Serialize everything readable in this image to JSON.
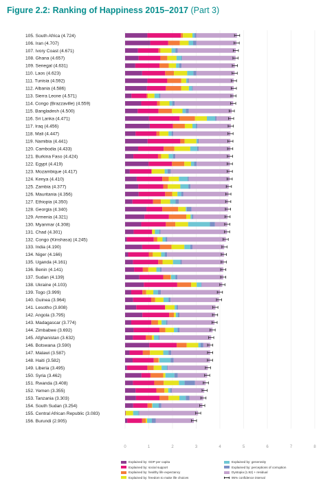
{
  "chart_data": {
    "type": "bar",
    "stacked": true,
    "orientation": "horizontal",
    "title": "Figure 2.2: Ranking of Happiness 2015–2017",
    "subtitle": "(Part 3)",
    "xlim": [
      0,
      8
    ],
    "ticks": [
      "0",
      "1",
      "2",
      "3",
      "4",
      "5",
      "6",
      "7",
      "8"
    ],
    "grid": true,
    "legend_position": "bottom",
    "series": [
      {
        "key": "gdp",
        "name": "Explained by: GDP per capita",
        "color": "#8e3a8f"
      },
      {
        "key": "social",
        "name": "Explained by: social support",
        "color": "#e6157a"
      },
      {
        "key": "health",
        "name": "Explained by: healthy life expectancy",
        "color": "#f47b3a"
      },
      {
        "key": "freedom",
        "name": "Explained by: freedom to make life choices",
        "color": "#e6e31f"
      },
      {
        "key": "generosity",
        "name": "Explained by: generosity",
        "color": "#6ec6d4"
      },
      {
        "key": "corruption",
        "name": "Explained by: perceptions of corruption",
        "color": "#7c8fc4"
      },
      {
        "key": "dystopia",
        "name": "Dystopia (1.92) + residual",
        "color": "#c3a2cd"
      }
    ],
    "ci_label": "95% confidence interval",
    "rows": [
      {
        "label": "105. South Africa (4.724)",
        "score": 4.724,
        "values": [
          0.94,
          1.41,
          0.09,
          0.4,
          0.09,
          0.07,
          1.72
        ]
      },
      {
        "label": "106. Iran (4.707)",
        "score": 4.707,
        "values": [
          1.06,
          0.76,
          0.49,
          0.37,
          0.19,
          0.14,
          1.69
        ]
      },
      {
        "label": "107. Ivory Coast (4.671)",
        "score": 4.671,
        "values": [
          0.54,
          0.87,
          0.08,
          0.47,
          0.16,
          0.1,
          2.45
        ]
      },
      {
        "label": "108. Ghana (4.657)",
        "score": 4.657,
        "values": [
          0.57,
          0.92,
          0.29,
          0.39,
          0.21,
          0.03,
          2.25
        ]
      },
      {
        "label": "109. Senegal (4.631)",
        "score": 4.631,
        "values": [
          0.43,
          1.02,
          0.39,
          0.31,
          0.13,
          0.1,
          2.25
        ]
      },
      {
        "label": "110. Laos (4.623)",
        "score": 4.623,
        "values": [
          0.72,
          0.97,
          0.37,
          0.56,
          0.26,
          0.13,
          1.61
        ]
      },
      {
        "label": "111. Tunisia (4.592)",
        "score": 4.592,
        "values": [
          0.94,
          0.84,
          0.59,
          0.21,
          0.05,
          0.06,
          1.89
        ]
      },
      {
        "label": "112. Albania (4.586)",
        "score": 4.586,
        "values": [
          0.92,
          0.8,
          0.65,
          0.32,
          0.13,
          0.04,
          1.72
        ]
      },
      {
        "label": "113. Sierra Leone (4.571)",
        "score": 4.571,
        "values": [
          0.27,
          0.64,
          0.05,
          0.28,
          0.19,
          0.06,
          3.08
        ]
      },
      {
        "label": "114. Congo (Brazzaville) (4.559)",
        "score": 4.559,
        "values": [
          0.68,
          0.67,
          0.12,
          0.4,
          0.12,
          0.1,
          2.47
        ]
      },
      {
        "label": "115. Bangladesh (4.500)",
        "score": 4.5,
        "values": [
          0.53,
          0.88,
          0.57,
          0.44,
          0.14,
          0.13,
          1.81
        ]
      },
      {
        "label": "116. Sri Lanka (4.471)",
        "score": 4.471,
        "values": [
          1.01,
          1.29,
          0.65,
          0.5,
          0.35,
          0.06,
          0.61
        ]
      },
      {
        "label": "117. Iraq (4.456)",
        "score": 4.456,
        "values": [
          1.04,
          0.98,
          0.5,
          0.32,
          0.15,
          0.06,
          1.41
        ]
      },
      {
        "label": "118. Mali (4.447)",
        "score": 4.447,
        "values": [
          0.44,
          0.88,
          0.13,
          0.38,
          0.13,
          0.07,
          2.41
        ]
      },
      {
        "label": "119. Namibia (4.441)",
        "score": 4.441,
        "values": [
          0.95,
          1.38,
          0.18,
          0.5,
          0.05,
          0.05,
          1.33
        ]
      },
      {
        "label": "120. Cambodia (4.433)",
        "score": 4.433,
        "values": [
          0.55,
          1.08,
          0.45,
          0.67,
          0.29,
          0.06,
          1.34
        ]
      },
      {
        "label": "121. Burkina Faso (4.424)",
        "score": 4.424,
        "values": [
          0.35,
          1.04,
          0.13,
          0.32,
          0.18,
          0.1,
          2.3
        ]
      },
      {
        "label": "122. Egypt (4.419)",
        "score": 4.419,
        "values": [
          0.99,
          0.99,
          0.52,
          0.28,
          0.13,
          0.11,
          1.4
        ]
      },
      {
        "label": "123. Mozambique (4.417)",
        "score": 4.417,
        "values": [
          0.2,
          0.91,
          0.02,
          0.54,
          0.12,
          0.14,
          2.48
        ]
      },
      {
        "label": "124. Kenya (4.410)",
        "score": 4.41,
        "values": [
          0.49,
          1.08,
          0.27,
          0.43,
          0.37,
          0.05,
          1.72
        ]
      },
      {
        "label": "125. Zambia (4.377)",
        "score": 4.377,
        "values": [
          0.56,
          1.05,
          0.19,
          0.53,
          0.34,
          0.09,
          1.61
        ]
      },
      {
        "label": "126. Mauritania (4.356)",
        "score": 4.356,
        "values": [
          0.57,
          1.12,
          0.3,
          0.22,
          0.16,
          0.09,
          1.9
        ]
      },
      {
        "label": "127. Ethiopia (4.350)",
        "score": 4.35,
        "values": [
          0.31,
          0.87,
          0.33,
          0.39,
          0.23,
          0.14,
          2.07
        ]
      },
      {
        "label": "128. Georgia (4.340)",
        "score": 4.34,
        "values": [
          0.9,
          0.67,
          0.67,
          0.32,
          0.04,
          0.2,
          1.54
        ]
      },
      {
        "label": "129. Armenia (4.321)",
        "score": 4.321,
        "values": [
          0.82,
          1.03,
          0.73,
          0.18,
          0.06,
          0.06,
          1.44
        ]
      },
      {
        "label": "130. Myanmar (4.308)",
        "score": 4.308,
        "values": [
          0.68,
          1.04,
          0.4,
          0.54,
          0.92,
          0.21,
          0.52
        ]
      },
      {
        "label": "131. Chad (4.301)",
        "score": 4.301,
        "values": [
          0.36,
          0.78,
          0.0,
          0.12,
          0.18,
          0.06,
          2.8
        ]
      },
      {
        "label": "132. Congo (Kinshasa) (4.245)",
        "score": 4.245,
        "values": [
          0.07,
          1.14,
          0.15,
          0.22,
          0.13,
          0.07,
          2.47
        ]
      },
      {
        "label": "133. India (4.190)",
        "score": 4.19,
        "values": [
          0.72,
          0.75,
          0.49,
          0.54,
          0.25,
          0.09,
          1.34
        ]
      },
      {
        "label": "134. Niger (4.166)",
        "score": 4.166,
        "values": [
          0.13,
          0.87,
          0.17,
          0.35,
          0.15,
          0.1,
          2.4
        ]
      },
      {
        "label": "135. Uganda (4.161)",
        "score": 4.161,
        "values": [
          0.33,
          1.07,
          0.18,
          0.44,
          0.31,
          0.06,
          1.77
        ]
      },
      {
        "label": "136. Benin (4.141)",
        "score": 4.141,
        "values": [
          0.38,
          0.37,
          0.23,
          0.34,
          0.16,
          0.06,
          2.6
        ]
      },
      {
        "label": "137. Sudan (4.139)",
        "score": 4.139,
        "values": [
          0.6,
          1.01,
          0.31,
          0.02,
          0.18,
          0.09,
          1.93
        ]
      },
      {
        "label": "138. Ukraine (4.103)",
        "score": 4.103,
        "values": [
          0.79,
          1.41,
          0.59,
          0.23,
          0.19,
          0.02,
          0.87
        ]
      },
      {
        "label": "139. Togo (3.999)",
        "score": 3.999,
        "values": [
          0.26,
          0.47,
          0.16,
          0.3,
          0.2,
          0.12,
          2.49
        ]
      },
      {
        "label": "140. Guinea (3.964)",
        "score": 3.964,
        "values": [
          0.34,
          0.76,
          0.17,
          0.35,
          0.21,
          0.09,
          2.04
        ]
      },
      {
        "label": "141. Lesotho (3.808)",
        "score": 3.808,
        "values": [
          0.47,
          1.22,
          0.0,
          0.4,
          0.08,
          0.06,
          1.58
        ]
      },
      {
        "label": "142. Angola (3.795)",
        "score": 3.795,
        "values": [
          0.73,
          1.13,
          0.2,
          0.08,
          0.08,
          0.07,
          1.5
        ]
      },
      {
        "label": "143. Madagascar (3.774)",
        "score": 3.774,
        "values": [
          0.26,
          0.85,
          0.28,
          0.15,
          0.19,
          0.06,
          1.98
        ]
      },
      {
        "label": "144. Zimbabwe (3.692)",
        "score": 3.692,
        "values": [
          0.36,
          1.09,
          0.25,
          0.36,
          0.15,
          0.09,
          1.39
        ]
      },
      {
        "label": "145. Afghanistan (3.632)",
        "score": 3.632,
        "values": [
          0.33,
          0.54,
          0.26,
          0.09,
          0.19,
          0.04,
          2.18
        ]
      },
      {
        "label": "146. Botswana (3.590)",
        "score": 3.59,
        "values": [
          1.02,
          1.16,
          0.42,
          0.49,
          0.09,
          0.12,
          0.29
        ]
      },
      {
        "label": "147. Malawi (3.587)",
        "score": 3.587,
        "values": [
          0.19,
          0.56,
          0.3,
          0.56,
          0.22,
          0.12,
          1.64
        ]
      },
      {
        "label": "148. Haiti (3.582)",
        "score": 3.582,
        "values": [
          0.32,
          0.89,
          0.2,
          0.03,
          0.48,
          0.13,
          1.53
        ]
      },
      {
        "label": "149. Liberia (3.495)",
        "score": 3.495,
        "values": [
          0.08,
          0.86,
          0.27,
          0.33,
          0.23,
          0.03,
          1.69
        ]
      },
      {
        "label": "150. Syria (3.462)",
        "score": 3.462,
        "values": [
          0.69,
          0.38,
          0.54,
          0.09,
          0.38,
          0.14,
          1.24
        ]
      },
      {
        "label": "151. Rwanda (3.408)",
        "score": 3.408,
        "values": [
          0.33,
          0.9,
          0.4,
          0.64,
          0.24,
          0.44,
          0.45
        ]
      },
      {
        "label": "152. Yemen (3.355)",
        "score": 3.355,
        "values": [
          0.44,
          0.88,
          0.34,
          0.16,
          0.09,
          0.06,
          1.37
        ]
      },
      {
        "label": "153. Tanzania (3.303)",
        "score": 3.303,
        "values": [
          0.46,
          0.99,
          0.38,
          0.46,
          0.27,
          0.15,
          0.59
        ]
      },
      {
        "label": "154. South Sudan (3.254)",
        "score": 3.254,
        "values": [
          0.34,
          0.61,
          0.18,
          0.02,
          0.27,
          0.11,
          1.73
        ]
      },
      {
        "label": "155. Central African Republic (3.083)",
        "score": 3.083,
        "values": [
          0.02,
          0.0,
          0.01,
          0.31,
          0.22,
          0.04,
          2.48
        ]
      },
      {
        "label": "156. Burundi (2.905)",
        "score": 2.905,
        "values": [
          0.09,
          0.63,
          0.15,
          0.06,
          0.2,
          0.16,
          1.61
        ]
      }
    ]
  }
}
